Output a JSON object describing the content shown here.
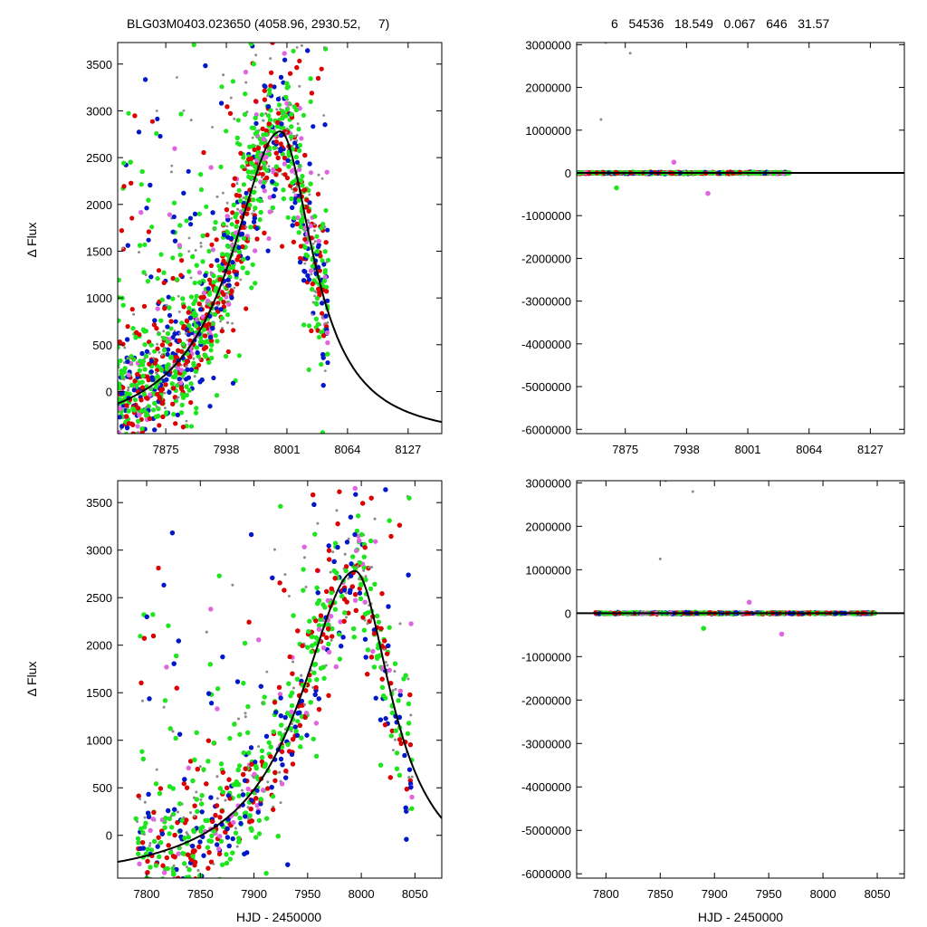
{
  "header": {
    "title_left": "BLG03M0403.023650 (4058.96, 2930.52,     7)",
    "title_right": "6   54536   18.549   0.067   646   31.57"
  },
  "colors": {
    "gray": "#8c8c8c",
    "red": "#dd0000",
    "blue": "#0018c8",
    "green": "#1ee51e",
    "magenta": "#e066e0",
    "model": "#000000"
  },
  "chart_data": [
    {
      "type": "scatter",
      "id": "top-left",
      "title": "BLG03M0403.023650 (4058.96, 2930.52,     7)",
      "xlabel": "",
      "ylabel": "Δ Flux",
      "xlim": [
        7825,
        8162
      ],
      "ylim": [
        -450,
        3730
      ],
      "xticks": [
        7875,
        7938,
        8001,
        8064,
        8127
      ],
      "yticks": [
        0,
        500,
        1000,
        1500,
        2000,
        2500,
        3000,
        3500
      ],
      "data_x_range": [
        7825,
        8044
      ],
      "model": {
        "t0": 7994,
        "peak": 2780,
        "rise_scale": 62,
        "fall_scale": 42,
        "baseline": -520
      },
      "series": [
        {
          "color": "gray",
          "description": "scattered points"
        },
        {
          "color": "red",
          "description": "scattered points"
        },
        {
          "color": "blue",
          "description": "scattered points"
        },
        {
          "color": "green",
          "description": "scattered points"
        },
        {
          "color": "magenta",
          "description": "scattered points"
        }
      ]
    },
    {
      "type": "scatter",
      "id": "top-right",
      "title": "6   54536   18.549   0.067   646   31.57",
      "xlabel": "",
      "ylabel": "",
      "xlim": [
        7825,
        8162
      ],
      "ylim": [
        -6100000,
        3050000
      ],
      "xticks": [
        7875,
        7938,
        8001,
        8064,
        8127
      ],
      "yticks": [
        3000000,
        2000000,
        1000000,
        0,
        -1000000,
        -2000000,
        -3000000,
        -4000000,
        -5000000,
        -6000000
      ],
      "data_x_range": [
        7825,
        8044
      ],
      "outliers": [
        {
          "x": 7855,
          "y": 3050000,
          "color": "gray"
        },
        {
          "x": 7880,
          "y": 2800000,
          "color": "gray"
        },
        {
          "x": 7850,
          "y": 1250000,
          "color": "gray"
        },
        {
          "x": 7925,
          "y": 250000,
          "color": "magenta"
        },
        {
          "x": 7960,
          "y": -480000,
          "color": "magenta"
        },
        {
          "x": 7866,
          "y": -350000,
          "color": "green"
        }
      ]
    },
    {
      "type": "scatter",
      "id": "bottom-left",
      "xlabel": "HJD - 2450000",
      "ylabel": "Δ Flux",
      "xlim": [
        7773,
        8075
      ],
      "ylim": [
        -450,
        3730
      ],
      "xticks": [
        7800,
        7850,
        7900,
        7950,
        8000,
        8050
      ],
      "yticks": [
        0,
        500,
        1000,
        1500,
        2000,
        2500,
        3000,
        3500
      ],
      "data_x_range": [
        7790,
        8048
      ],
      "model": {
        "t0": 7994,
        "peak": 2780,
        "rise_scale": 62,
        "fall_scale": 42,
        "baseline": -520
      },
      "series": [
        {
          "color": "gray",
          "description": "scattered points"
        },
        {
          "color": "red",
          "description": "scattered points"
        },
        {
          "color": "blue",
          "description": "scattered points"
        },
        {
          "color": "green",
          "description": "scattered points"
        },
        {
          "color": "magenta",
          "description": "scattered points"
        }
      ]
    },
    {
      "type": "scatter",
      "id": "bottom-right",
      "xlabel": "HJD - 2450000",
      "ylabel": "",
      "xlim": [
        7773,
        8075
      ],
      "ylim": [
        -6100000,
        3050000
      ],
      "xticks": [
        7800,
        7850,
        7900,
        7950,
        8000,
        8050
      ],
      "yticks": [
        3000000,
        2000000,
        1000000,
        0,
        -1000000,
        -2000000,
        -3000000,
        -4000000,
        -5000000,
        -6000000
      ],
      "data_x_range": [
        7790,
        8048
      ],
      "outliers": [
        {
          "x": 7855,
          "y": 3050000,
          "color": "gray"
        },
        {
          "x": 7880,
          "y": 2800000,
          "color": "gray"
        },
        {
          "x": 7850,
          "y": 1250000,
          "color": "gray"
        },
        {
          "x": 7932,
          "y": 250000,
          "color": "magenta"
        },
        {
          "x": 7962,
          "y": -480000,
          "color": "magenta"
        },
        {
          "x": 7890,
          "y": -350000,
          "color": "green"
        }
      ]
    }
  ]
}
